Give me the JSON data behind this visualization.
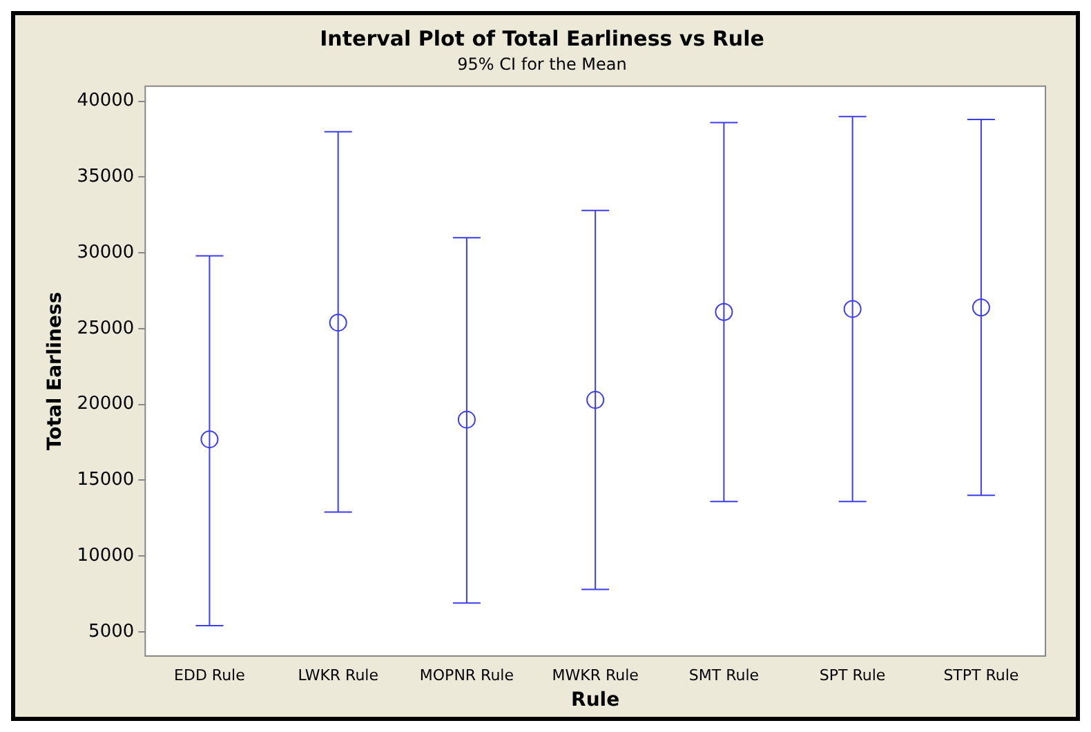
{
  "chart_data": {
    "type": "scatter",
    "title": "Interval Plot of Total Earliness vs Rule",
    "subtitle": "95% CI for the Mean",
    "xlabel": "Rule",
    "ylabel": "Total Earliness",
    "categories": [
      "EDD Rule",
      "LWKR Rule",
      "MOPNR Rule",
      "MWKR Rule",
      "SMT Rule",
      "SPT Rule",
      "STPT Rule"
    ],
    "values": [
      17700,
      25400,
      19000,
      20300,
      26100,
      26300,
      26400
    ],
    "errors": [
      [
        5400,
        29800
      ],
      [
        12900,
        38000
      ],
      [
        6900,
        31000
      ],
      [
        7800,
        32800
      ],
      [
        13600,
        38600
      ],
      [
        13600,
        39000
      ],
      [
        14000,
        38800
      ]
    ],
    "color": "#3c3cf0",
    "marker": "circle",
    "ylim": [
      3400,
      41000
    ],
    "yticks": [
      5000,
      10000,
      15000,
      20000,
      25000,
      30000,
      35000,
      40000
    ],
    "grid": false,
    "legend": false
  }
}
